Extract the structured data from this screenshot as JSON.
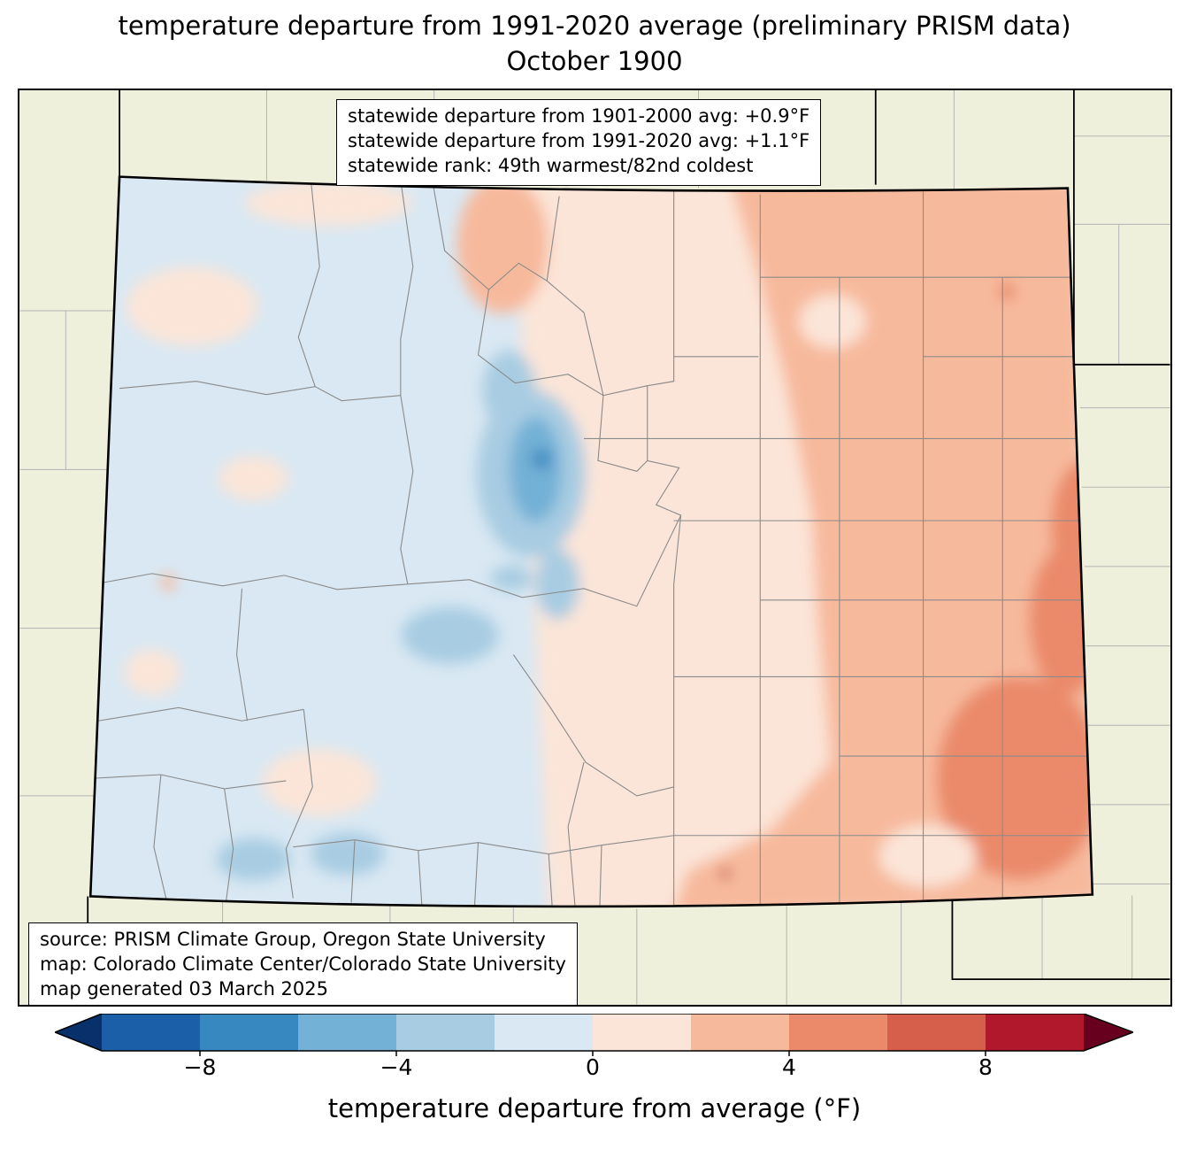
{
  "title": {
    "line1": "temperature departure from 1991-2020 average (preliminary PRISM data)",
    "line2": "October 1900"
  },
  "stats_box": {
    "lines": [
      "statewide departure from 1901-2000 avg: +0.9°F",
      "statewide departure from 1991-2020 avg: +1.1°F",
      "statewide rank: 49th warmest/82nd coldest"
    ]
  },
  "source_box": {
    "lines": [
      "source: PRISM Climate Group, Oregon State University",
      "map: Colorado Climate Center/Colorado State University",
      "map generated 03 March 2025"
    ]
  },
  "map": {
    "state": "Colorado",
    "background_color": "#eef0dc",
    "county_line_color": "#8a8a8a",
    "outside_county_line_color": "#b3b3b3",
    "state_border_color": "#000000"
  },
  "colorbar": {
    "label": "temperature departure from average (°F)",
    "range_min": -10,
    "range_max": 10,
    "bin_width": 2,
    "tick_values": [
      -8,
      -4,
      0,
      4,
      8
    ],
    "tick_labels": [
      "−8",
      "−4",
      "0",
      "4",
      "8"
    ],
    "colors": [
      "#1a5fa8",
      "#3787c0",
      "#73b1d6",
      "#a8cce2",
      "#d9e8f3",
      "#fbe5d8",
      "#f7b99c",
      "#ea8a6a",
      "#d65f4c",
      "#b2182b"
    ],
    "arrow_left_color": "#08306b",
    "arrow_right_color": "#67001f"
  }
}
